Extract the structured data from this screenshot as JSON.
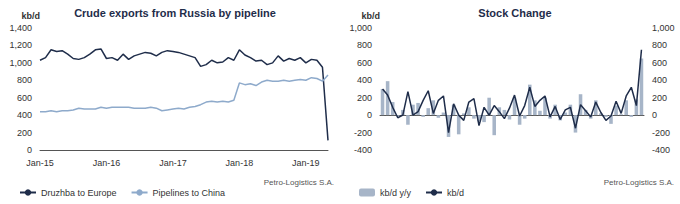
{
  "chart_data": [
    {
      "type": "line",
      "title": "Crude exports from Russia by pipeline",
      "y_label": "kb/d",
      "annotations": [
        "Petro-Logistics S.A."
      ],
      "categories": [
        "Jan-15",
        null,
        null,
        null,
        null,
        null,
        null,
        null,
        null,
        null,
        null,
        null,
        "Jan-16",
        null,
        null,
        null,
        null,
        null,
        null,
        null,
        null,
        null,
        null,
        null,
        "Jan-17",
        null,
        null,
        null,
        null,
        null,
        null,
        null,
        null,
        null,
        null,
        null,
        "Jan-18",
        null,
        null,
        null,
        null,
        null,
        null,
        null,
        null,
        null,
        null,
        null,
        "Jan-19",
        null,
        null,
        null,
        null
      ],
      "series": [
        {
          "name": "Druzhba to Europe",
          "color": "#1f2d4a",
          "values": [
            1030,
            1060,
            1150,
            1130,
            1140,
            1100,
            1050,
            1040,
            1060,
            1100,
            1150,
            1160,
            1050,
            1060,
            1030,
            1100,
            1040,
            1080,
            1100,
            1120,
            1110,
            1080,
            1120,
            1140,
            1130,
            1120,
            1100,
            1080,
            1060,
            960,
            980,
            1030,
            1000,
            1010,
            1060,
            1030,
            1150,
            1090,
            1060,
            1020,
            1030,
            980,
            1000,
            1080,
            1020,
            1050,
            1030,
            1060,
            1000,
            1040,
            1030,
            950,
            110
          ]
        },
        {
          "name": "Pipelines to China",
          "color": "#8eaacb",
          "values": [
            440,
            440,
            450,
            440,
            450,
            450,
            460,
            480,
            470,
            470,
            470,
            490,
            480,
            490,
            490,
            490,
            490,
            480,
            480,
            480,
            490,
            480,
            450,
            460,
            470,
            480,
            470,
            490,
            500,
            520,
            550,
            560,
            550,
            560,
            550,
            570,
            770,
            750,
            760,
            740,
            780,
            800,
            790,
            790,
            800,
            790,
            800,
            810,
            800,
            830,
            820,
            790,
            860
          ]
        }
      ],
      "ylim": [
        0,
        1400
      ],
      "yticks": [
        0,
        200,
        400,
        600,
        800,
        {
          "value": 1000,
          "label": "1,000"
        },
        {
          "value": 1200,
          "label": "1,200"
        },
        {
          "value": 1400,
          "label": "1,400"
        }
      ],
      "grid": false,
      "legend": "bottom"
    },
    {
      "type": "bar",
      "title": "Stock Change",
      "y_label": "kb/d",
      "annotations": [
        "Petro-Logistics S.A."
      ],
      "categories": [
        null,
        null,
        null,
        null,
        null,
        null,
        null,
        null,
        null,
        null,
        null,
        null,
        null,
        null,
        null,
        null,
        null,
        null,
        null,
        null,
        null,
        null,
        null,
        null,
        null,
        null,
        null,
        null,
        null,
        null,
        null,
        null,
        null,
        null,
        null,
        null,
        null,
        null,
        null,
        null,
        null,
        null,
        null,
        null,
        null,
        null,
        null,
        null,
        null,
        null,
        null,
        null
      ],
      "series": [
        {
          "name": "kb/d y/y",
          "type": "bar",
          "color": "#a7b5c8",
          "values": [
            300,
            390,
            150,
            -10,
            60,
            -110,
            120,
            140,
            -20,
            80,
            170,
            -30,
            30,
            -250,
            120,
            -220,
            20,
            90,
            -40,
            -70,
            -80,
            200,
            -230,
            90,
            60,
            -50,
            200,
            -110,
            -40,
            350,
            170,
            50,
            200,
            -40,
            120,
            -60,
            30,
            120,
            -200,
            240,
            60,
            -40,
            170,
            20,
            -20,
            -100,
            110,
            10,
            170,
            -20,
            180,
            650
          ]
        },
        {
          "name": "kb/d",
          "type": "line",
          "axis": "y2",
          "color": "#1f2d4a",
          "values": [
            300,
            230,
            90,
            -30,
            0,
            270,
            0,
            40,
            170,
            280,
            20,
            170,
            220,
            -200,
            130,
            0,
            -60,
            150,
            190,
            -120,
            90,
            0,
            110,
            40,
            -40,
            80,
            230,
            -10,
            110,
            320,
            100,
            170,
            220,
            -20,
            100,
            -50,
            60,
            90,
            -150,
            120,
            50,
            -20,
            150,
            30,
            -60,
            -10,
            160,
            20,
            220,
            320,
            110,
            750
          ]
        }
      ],
      "ylim": [
        -400,
        1000
      ],
      "yticks": [
        -400,
        -200,
        0,
        200,
        400,
        600,
        800,
        {
          "value": 1000,
          "label": "1,000"
        }
      ],
      "y2lim": [
        -400,
        1000
      ],
      "y2ticks": [
        -400,
        -200,
        0,
        200,
        400,
        600,
        800,
        {
          "value": 1000,
          "label": "1,000"
        }
      ],
      "grid": false,
      "legend": "bottom"
    }
  ]
}
